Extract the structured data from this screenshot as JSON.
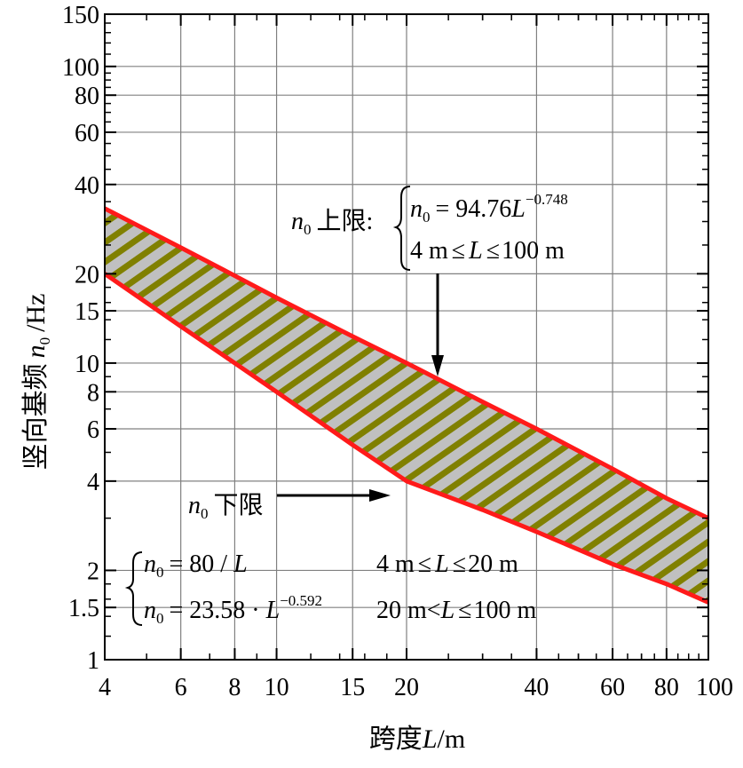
{
  "chart_data": {
    "type": "area",
    "x_scale": "log",
    "y_scale": "log",
    "xlim": [
      4,
      100
    ],
    "ylim": [
      1,
      150
    ],
    "grid": true,
    "xlabel": {
      "main": "跨度",
      "var": "L",
      "unit": "/m"
    },
    "ylabel": {
      "main": "竖向基频",
      "var": "n",
      "sub": "0",
      "unit": "/Hz"
    },
    "x_ticks": [
      4,
      6,
      8,
      10,
      15,
      20,
      40,
      60,
      80,
      100
    ],
    "x_tick_labels": [
      "4",
      "6",
      "8",
      "10",
      "15",
      "20",
      "40",
      "60",
      "80",
      "100"
    ],
    "y_ticks": [
      1,
      1.5,
      2,
      4,
      6,
      8,
      10,
      15,
      20,
      40,
      60,
      80,
      100,
      150
    ],
    "y_tick_labels": [
      "1",
      "1.5",
      "2",
      "4",
      "6",
      "8",
      "10",
      "15",
      "20",
      "40",
      "60",
      "80",
      "100",
      "150"
    ],
    "series": [
      {
        "role": "upper",
        "x": [
          4,
          6,
          8,
          10,
          15,
          20,
          30,
          40,
          60,
          80,
          100
        ],
        "values": [
          33.2,
          24.5,
          19.7,
          16.6,
          12.3,
          10.0,
          7.4,
          6.0,
          4.4,
          3.5,
          3.0
        ]
      },
      {
        "role": "lower",
        "x": [
          4,
          6,
          8,
          10,
          15,
          20,
          30,
          40,
          60,
          80,
          100
        ],
        "values": [
          20.0,
          13.3,
          10.0,
          8.0,
          5.3,
          4.0,
          3.2,
          2.7,
          2.1,
          1.8,
          1.56
        ]
      }
    ],
    "colors": {
      "bound_line": "#ff1a1a",
      "hatch_fill": "#c0c0c0",
      "hatch_stripe": "#808000",
      "grid": "#808080"
    }
  },
  "annotations": {
    "upper": {
      "label_var": "n",
      "label_sub": "0",
      "label_text": "上限",
      "eq_var": "n",
      "eq_sub": "0",
      "eq_mid": "= 94.76",
      "eq_L": "L",
      "eq_exp": "−0.748",
      "range_pre": "4 m",
      "range_le1": "≤",
      "range_L": "L",
      "range_le2": "≤",
      "range_post": "100 m"
    },
    "lower": {
      "label_var": "n",
      "label_sub": "0",
      "label_text": "下限"
    },
    "formula1": {
      "var": "n",
      "sub": "0",
      "mid": "= 80 / ",
      "L": "L",
      "range_pre": "4 m",
      "range_le1": "≤",
      "range_L": "L",
      "range_le2": "≤",
      "range_post": "20 m"
    },
    "formula2": {
      "var": "n",
      "sub": "0",
      "mid": "= 23.58 · ",
      "L": "L",
      "exp": "−0.592",
      "range_pre": "20 m<",
      "range_L": "L",
      "range_le2": "≤",
      "range_post": "100 m"
    }
  }
}
